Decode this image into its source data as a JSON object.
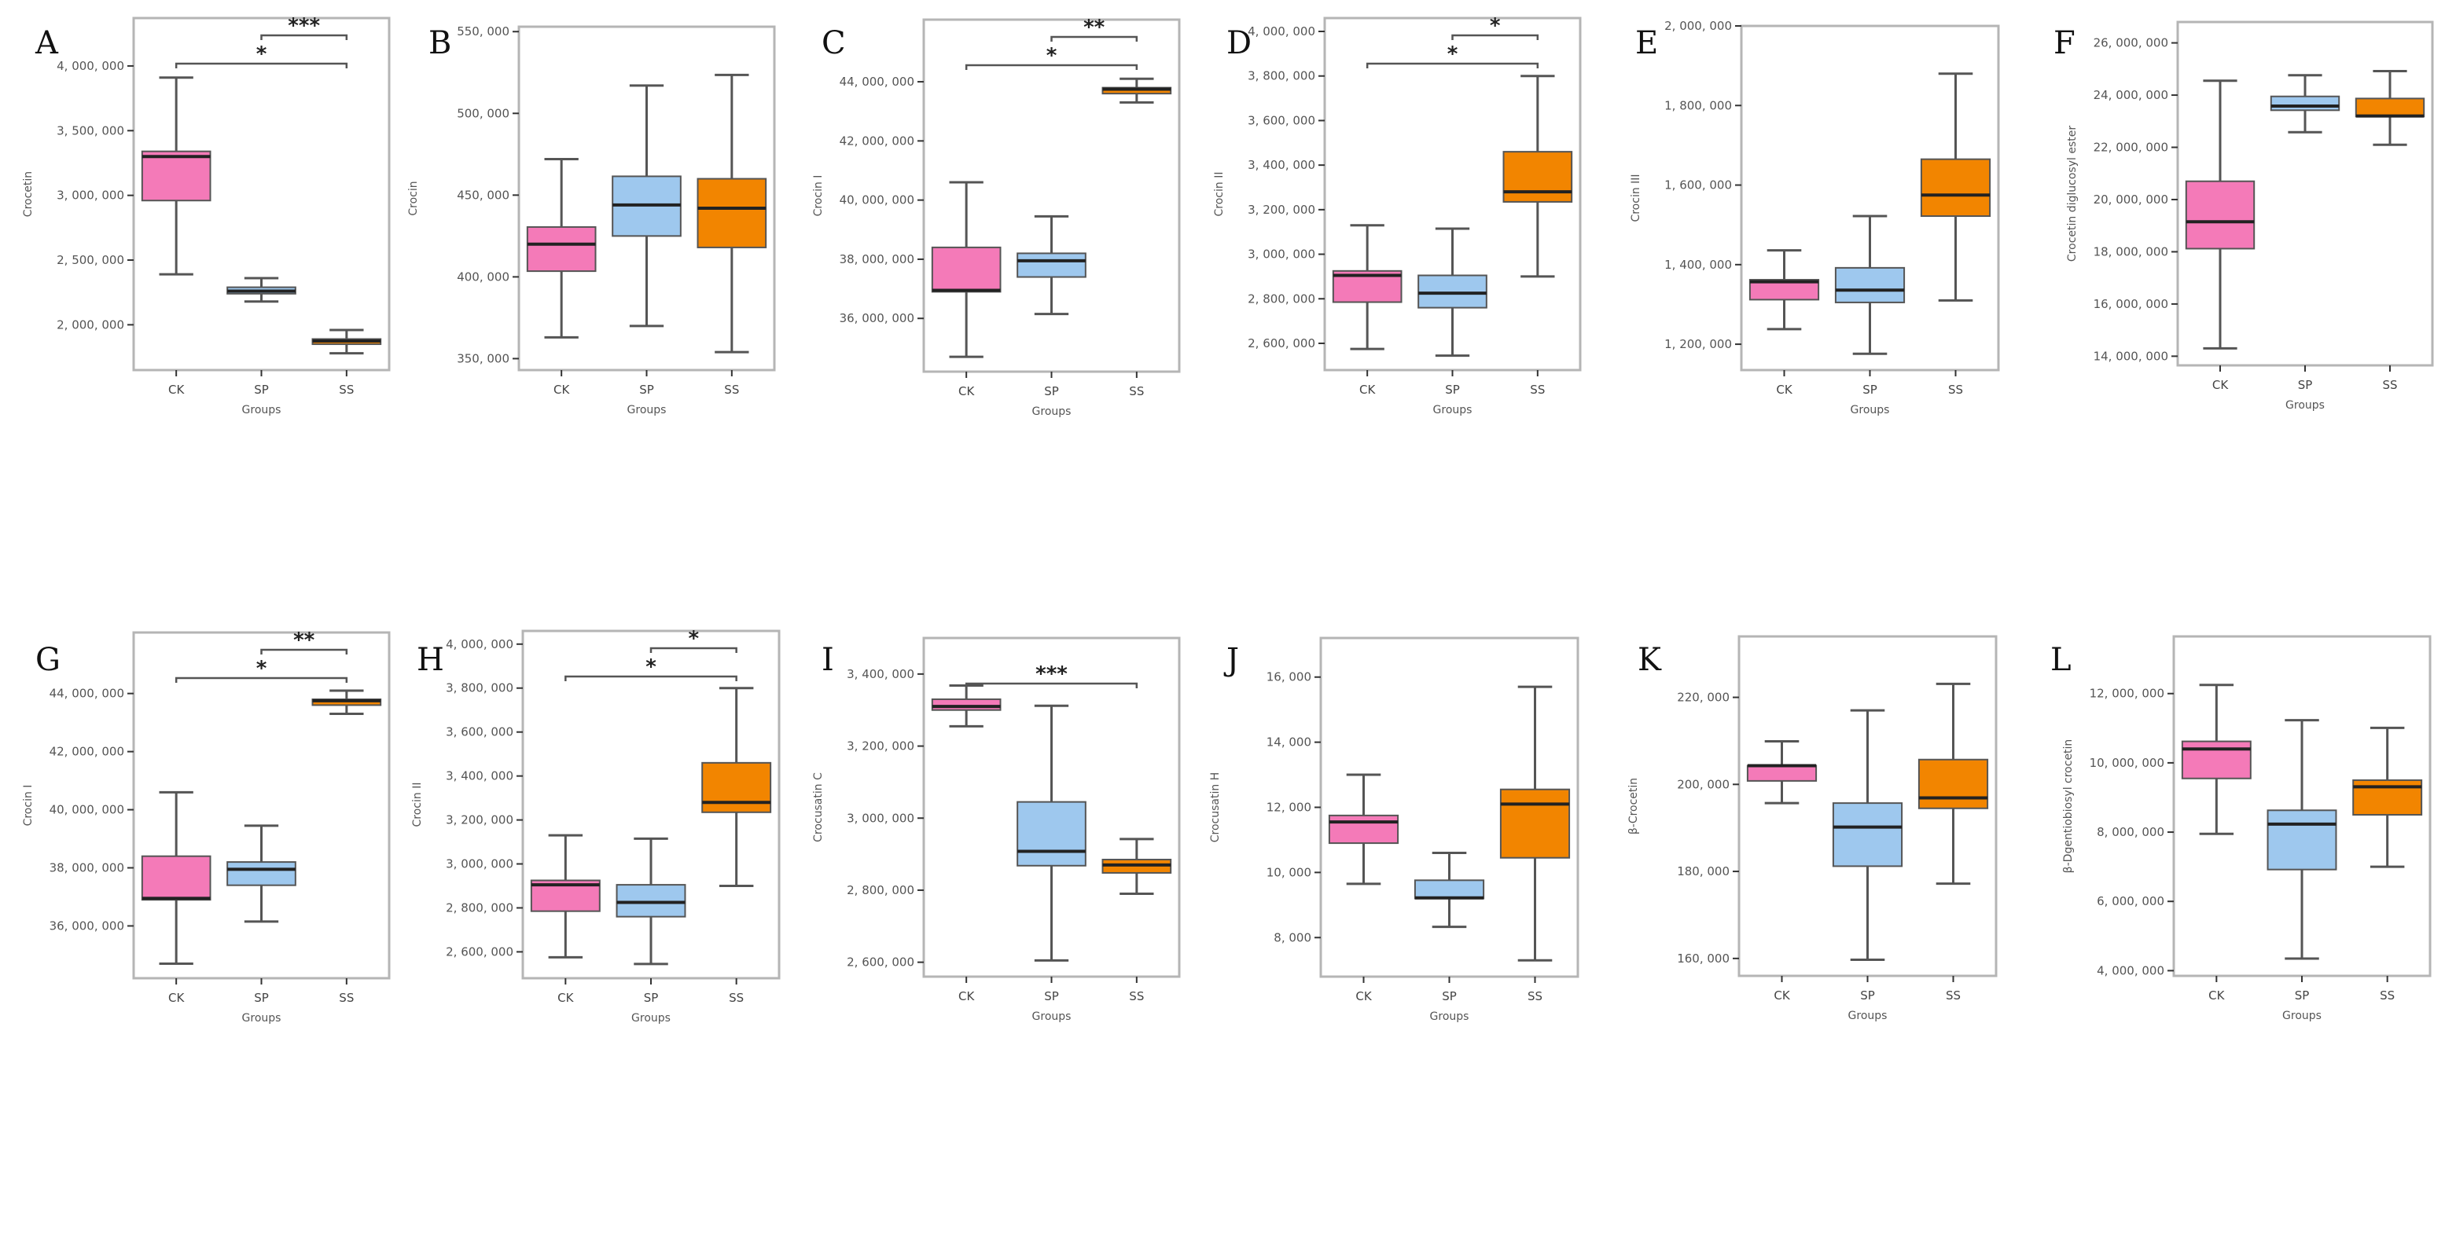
{
  "figure": {
    "groups": [
      "CK",
      "SP",
      "SS"
    ],
    "group_colors": {
      "CK": "#f47ab8",
      "SP": "#9ec8ee",
      "SS": "#f28500"
    },
    "x_axis_title": "Groups"
  },
  "chart_data": [
    {
      "panel": "A",
      "type": "box",
      "ylabel": "Crocetin",
      "categories": [
        "CK",
        "SP",
        "SS"
      ],
      "yticks": [
        2000000,
        2500000,
        3000000,
        3500000,
        4000000
      ],
      "ytick_labels": [
        "2, 000, 000",
        "2, 500, 000",
        "3, 000, 000",
        "3, 500, 000",
        "4, 000, 000"
      ],
      "ylim": [
        1650000,
        4370000
      ],
      "boxes": [
        {
          "group": "CK",
          "min": 2390000,
          "q1": 2960000,
          "median": 3300000,
          "q3": 3340000,
          "max": 3910000
        },
        {
          "group": "SP",
          "min": 2180000,
          "q1": 2240000,
          "median": 2260000,
          "q3": 2290000,
          "max": 2360000
        },
        {
          "group": "SS",
          "min": 1780000,
          "q1": 1850000,
          "median": 1875000,
          "q3": 1890000,
          "max": 1960000
        }
      ],
      "significance": [
        {
          "from": "SP",
          "to": "SS",
          "label": "***"
        },
        {
          "from": "CK",
          "to": "SS",
          "label": "*"
        }
      ]
    },
    {
      "panel": "B",
      "type": "box",
      "ylabel": "Crocin",
      "categories": [
        "CK",
        "SP",
        "SS"
      ],
      "yticks": [
        350000,
        400000,
        450000,
        500000,
        550000
      ],
      "ytick_labels": [
        "350, 000",
        "400, 000",
        "450, 000",
        "500, 000",
        "550, 000"
      ],
      "ylim": [
        343000,
        553000
      ],
      "boxes": [
        {
          "group": "CK",
          "min": 363000,
          "q1": 403500,
          "median": 420000,
          "q3": 430500,
          "max": 472000
        },
        {
          "group": "SP",
          "min": 370000,
          "q1": 425000,
          "median": 444000,
          "q3": 461500,
          "max": 517000
        },
        {
          "group": "SS",
          "min": 354000,
          "q1": 418000,
          "median": 442000,
          "q3": 460000,
          "max": 523500
        }
      ],
      "significance": []
    },
    {
      "panel": "C",
      "type": "box",
      "ylabel": "Crocin I",
      "categories": [
        "CK",
        "SP",
        "SS"
      ],
      "yticks": [
        36000000,
        38000000,
        40000000,
        42000000,
        44000000
      ],
      "ytick_labels": [
        "36, 000, 000",
        "38, 000, 000",
        "40, 000, 000",
        "42, 000, 000",
        "44, 000, 000"
      ],
      "ylim": [
        34200000,
        46100000
      ],
      "boxes": [
        {
          "group": "CK",
          "min": 34700000,
          "q1": 36900000,
          "median": 36950000,
          "q3": 38400000,
          "max": 40600000
        },
        {
          "group": "SP",
          "min": 36150000,
          "q1": 37400000,
          "median": 37950000,
          "q3": 38200000,
          "max": 39450000
        },
        {
          "group": "SS",
          "min": 43300000,
          "q1": 43600000,
          "median": 43750000,
          "q3": 43800000,
          "max": 44100000
        }
      ],
      "significance": [
        {
          "from": "SP",
          "to": "SS",
          "label": "**"
        },
        {
          "from": "CK",
          "to": "SS",
          "label": "*"
        }
      ]
    },
    {
      "panel": "D",
      "type": "box",
      "ylabel": "Crocin II",
      "categories": [
        "CK",
        "SP",
        "SS"
      ],
      "yticks": [
        2600000,
        2800000,
        3000000,
        3200000,
        3400000,
        3600000,
        3800000,
        4000000
      ],
      "ytick_labels": [
        "2, 600, 000",
        "2, 800, 000",
        "3, 000, 000",
        "3, 200, 000",
        "3, 400, 000",
        "3, 600, 000",
        "3, 800, 000",
        "4, 000, 000"
      ],
      "ylim": [
        2480000,
        4060000
      ],
      "boxes": [
        {
          "group": "CK",
          "min": 2575000,
          "q1": 2785000,
          "median": 2905000,
          "q3": 2925000,
          "max": 3130000
        },
        {
          "group": "SP",
          "min": 2545000,
          "q1": 2760000,
          "median": 2825000,
          "q3": 2905000,
          "max": 3115000
        },
        {
          "group": "SS",
          "min": 2900000,
          "q1": 3235000,
          "median": 3280000,
          "q3": 3460000,
          "max": 3800000
        }
      ],
      "significance": [
        {
          "from": "SP",
          "to": "SS",
          "label": "*"
        },
        {
          "from": "CK",
          "to": "SS",
          "label": "*"
        }
      ]
    },
    {
      "panel": "E",
      "type": "box",
      "ylabel": "Crocin III",
      "categories": [
        "CK",
        "SP",
        "SS"
      ],
      "yticks": [
        1200000,
        1400000,
        1600000,
        1800000,
        2000000
      ],
      "ytick_labels": [
        "1, 200, 000",
        "1, 400, 000",
        "1, 600, 000",
        "1, 800, 000",
        "2, 000, 000"
      ],
      "ylim": [
        1135000,
        2000000
      ],
      "boxes": [
        {
          "group": "CK",
          "min": 1238000,
          "q1": 1312000,
          "median": 1357000,
          "q3": 1362000,
          "max": 1436000
        },
        {
          "group": "SP",
          "min": 1176000,
          "q1": 1305000,
          "median": 1336000,
          "q3": 1392000,
          "max": 1522000
        },
        {
          "group": "SS",
          "min": 1310000,
          "q1": 1522000,
          "median": 1575000,
          "q3": 1665000,
          "max": 1880000
        }
      ],
      "significance": []
    },
    {
      "panel": "F",
      "type": "box",
      "ylabel": "Crocetin diglucosyl ester",
      "categories": [
        "CK",
        "SP",
        "SS"
      ],
      "yticks": [
        14000000,
        16000000,
        18000000,
        20000000,
        22000000,
        24000000,
        26000000
      ],
      "ytick_labels": [
        "14, 000, 000",
        "16, 000, 000",
        "18, 000, 000",
        "20, 000, 000",
        "22, 000, 000",
        "24, 000, 000",
        "26, 000, 000"
      ],
      "ylim": [
        13650000,
        26800000
      ],
      "boxes": [
        {
          "group": "CK",
          "min": 14300000,
          "q1": 18120000,
          "median": 19150000,
          "q3": 20700000,
          "max": 24550000
        },
        {
          "group": "SP",
          "min": 22580000,
          "q1": 23420000,
          "median": 23580000,
          "q3": 23950000,
          "max": 24760000
        },
        {
          "group": "SS",
          "min": 22100000,
          "q1": 23180000,
          "median": 23200000,
          "q3": 23870000,
          "max": 24920000
        }
      ],
      "significance": []
    },
    {
      "panel": "G",
      "type": "box",
      "ylabel": "Crocin I",
      "categories": [
        "CK",
        "SP",
        "SS"
      ],
      "yticks": [
        36000000,
        38000000,
        40000000,
        42000000,
        44000000
      ],
      "ytick_labels": [
        "36, 000, 000",
        "38, 000, 000",
        "40, 000, 000",
        "42, 000, 000",
        "44, 000, 000"
      ],
      "ylim": [
        34200000,
        46100000
      ],
      "boxes": [
        {
          "group": "CK",
          "min": 34700000,
          "q1": 36900000,
          "median": 36950000,
          "q3": 38400000,
          "max": 40600000
        },
        {
          "group": "SP",
          "min": 36150000,
          "q1": 37400000,
          "median": 37950000,
          "q3": 38200000,
          "max": 39450000
        },
        {
          "group": "SS",
          "min": 43300000,
          "q1": 43600000,
          "median": 43750000,
          "q3": 43800000,
          "max": 44100000
        }
      ],
      "significance": [
        {
          "from": "SP",
          "to": "SS",
          "label": "**"
        },
        {
          "from": "CK",
          "to": "SS",
          "label": "*"
        }
      ]
    },
    {
      "panel": "H",
      "type": "box",
      "ylabel": "Crocin II",
      "categories": [
        "CK",
        "SP",
        "SS"
      ],
      "yticks": [
        2600000,
        2800000,
        3000000,
        3200000,
        3400000,
        3600000,
        3800000,
        4000000
      ],
      "ytick_labels": [
        "2, 600, 000",
        "2, 800, 000",
        "3, 000, 000",
        "3, 200, 000",
        "3, 400, 000",
        "3, 600, 000",
        "3, 800, 000",
        "4, 000, 000"
      ],
      "ylim": [
        2480000,
        4060000
      ],
      "boxes": [
        {
          "group": "CK",
          "min": 2575000,
          "q1": 2785000,
          "median": 2905000,
          "q3": 2925000,
          "max": 3130000
        },
        {
          "group": "SP",
          "min": 2545000,
          "q1": 2760000,
          "median": 2825000,
          "q3": 2905000,
          "max": 3115000
        },
        {
          "group": "SS",
          "min": 2900000,
          "q1": 3235000,
          "median": 3280000,
          "q3": 3460000,
          "max": 3800000
        }
      ],
      "significance": [
        {
          "from": "SP",
          "to": "SS",
          "label": "*"
        },
        {
          "from": "CK",
          "to": "SS",
          "label": "*"
        }
      ]
    },
    {
      "panel": "I",
      "type": "box",
      "ylabel": "Crocusatin C",
      "categories": [
        "CK",
        "SP",
        "SS"
      ],
      "yticks": [
        2600000,
        2800000,
        3000000,
        3200000,
        3400000
      ],
      "ytick_labels": [
        "2, 600, 000",
        "2, 800, 000",
        "3, 000, 000",
        "3, 200, 000",
        "3, 400, 000"
      ],
      "ylim": [
        2560000,
        3500000
      ],
      "boxes": [
        {
          "group": "CK",
          "min": 3255000,
          "q1": 3300000,
          "median": 3310000,
          "q3": 3330000,
          "max": 3368000
        },
        {
          "group": "SP",
          "min": 2605000,
          "q1": 2868000,
          "median": 2908000,
          "q3": 3045000,
          "max": 3312000
        },
        {
          "group": "SS",
          "min": 2790000,
          "q1": 2848000,
          "median": 2870000,
          "q3": 2885000,
          "max": 2942000
        }
      ],
      "significance": [
        {
          "from": "CK",
          "to": "SS",
          "label": "***"
        }
      ]
    },
    {
      "panel": "J",
      "type": "box",
      "ylabel": "Crocusatin H",
      "categories": [
        "CK",
        "SP",
        "SS"
      ],
      "yticks": [
        8000,
        10000,
        12000,
        14000,
        16000
      ],
      "ytick_labels": [
        "8, 000",
        "10, 000",
        "12, 000",
        "14, 000",
        "16, 000"
      ],
      "ylim": [
        6800,
        17200
      ],
      "boxes": [
        {
          "group": "CK",
          "min": 9650,
          "q1": 10900,
          "median": 11550,
          "q3": 11750,
          "max": 13000
        },
        {
          "group": "SP",
          "min": 8330,
          "q1": 9200,
          "median": 9220,
          "q3": 9760,
          "max": 10600
        },
        {
          "group": "SS",
          "min": 7300,
          "q1": 10450,
          "median": 12100,
          "q3": 12550,
          "max": 15700
        }
      ],
      "significance": []
    },
    {
      "panel": "K",
      "type": "box",
      "ylabel": "β-Crocetin",
      "categories": [
        "CK",
        "SP",
        "SS"
      ],
      "yticks": [
        160000,
        180000,
        200000,
        220000
      ],
      "ytick_labels": [
        "160, 000",
        "180, 000",
        "200, 000",
        "220, 000"
      ],
      "ylim": [
        156000,
        234000
      ],
      "boxes": [
        {
          "group": "CK",
          "min": 195700,
          "q1": 200800,
          "median": 204300,
          "q3": 204300,
          "max": 209900
        },
        {
          "group": "SP",
          "min": 159700,
          "q1": 181200,
          "median": 190200,
          "q3": 195700,
          "max": 217000
        },
        {
          "group": "SS",
          "min": 177200,
          "q1": 194500,
          "median": 196900,
          "q3": 205700,
          "max": 223100
        }
      ],
      "significance": []
    },
    {
      "panel": "L",
      "type": "box",
      "ylabel": "β-Dgentiobiosyl crocetin",
      "categories": [
        "CK",
        "SP",
        "SS"
      ],
      "yticks": [
        4000000,
        6000000,
        8000000,
        10000000,
        12000000
      ],
      "ytick_labels": [
        "4, 000, 000",
        "6, 000, 000",
        "8, 000, 000",
        "10, 000, 000",
        "12, 000, 000"
      ],
      "ylim": [
        3850000,
        13650000
      ],
      "boxes": [
        {
          "group": "CK",
          "min": 7950000,
          "q1": 9550000,
          "median": 10400000,
          "q3": 10620000,
          "max": 12250000
        },
        {
          "group": "SP",
          "min": 4350000,
          "q1": 6920000,
          "median": 8230000,
          "q3": 8630000,
          "max": 11230000
        },
        {
          "group": "SS",
          "min": 7000000,
          "q1": 8500000,
          "median": 9310000,
          "q3": 9500000,
          "max": 11010000
        }
      ],
      "significance": []
    }
  ]
}
